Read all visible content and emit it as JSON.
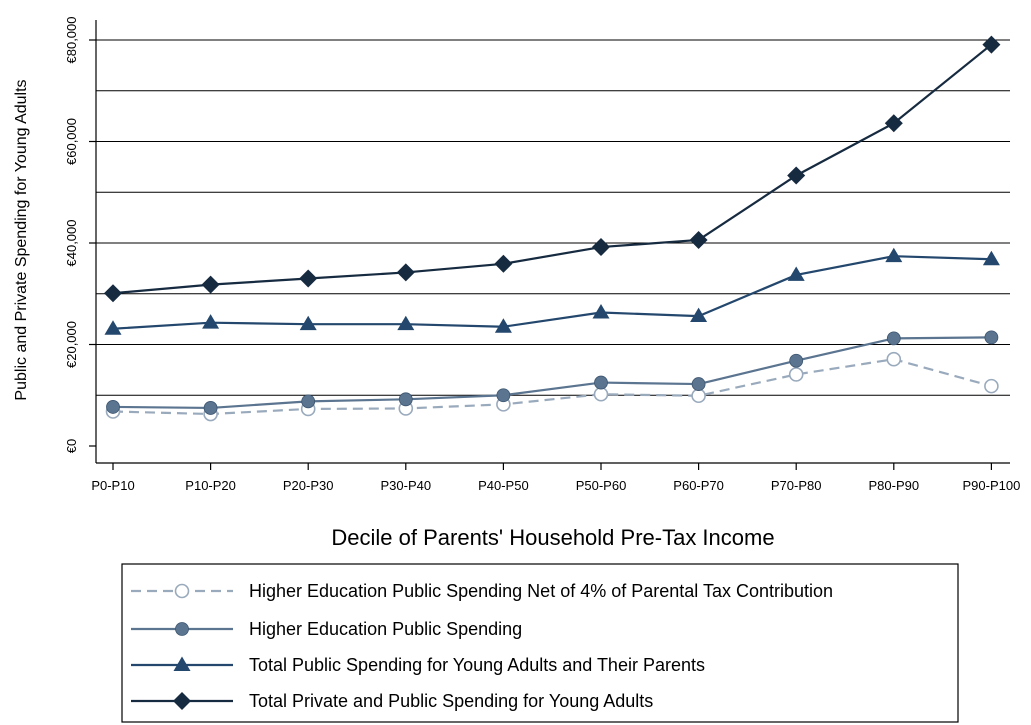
{
  "chart_data": {
    "type": "line",
    "title": "",
    "xlabel": "Decile of Parents' Household Pre-Tax Income",
    "ylabel": "Public and Private Spending for Young Adults",
    "categories": [
      "P0-P10",
      "P10-P20",
      "P20-P30",
      "P30-P40",
      "P40-P50",
      "P50-P60",
      "P60-P70",
      "P70-P80",
      "P80-P90",
      "P90-P100"
    ],
    "ylim": [
      0,
      80000
    ],
    "yticks": [
      {
        "value": 0,
        "label": "€0"
      },
      {
        "value": 20000,
        "label": "€20,000"
      },
      {
        "value": 40000,
        "label": "€40,000"
      },
      {
        "value": 60000,
        "label": "€60,000"
      },
      {
        "value": 80000,
        "label": "€80,000"
      }
    ],
    "grid_values": [
      10000,
      20000,
      30000,
      40000,
      50000,
      60000,
      70000,
      80000
    ],
    "legend_position": "bottom",
    "series": [
      {
        "name": "Higher Education Public Spending Net of 4% of Parental Tax Contribution",
        "values": [
          6800,
          6300,
          7300,
          7400,
          8200,
          10200,
          9900,
          14100,
          17100,
          11800
        ],
        "color": "#9aaabd",
        "marker": "circle-open",
        "dash": "dashed"
      },
      {
        "name": "Higher Education Public Spending",
        "values": [
          7700,
          7500,
          8800,
          9200,
          10000,
          12500,
          12200,
          16800,
          21200,
          21400
        ],
        "color": "#5b7490",
        "marker": "circle",
        "dash": "solid"
      },
      {
        "name": "Total Public Spending for Young Adults and Their Parents",
        "values": [
          23100,
          24300,
          24000,
          24000,
          23500,
          26300,
          25600,
          33700,
          37400,
          36800
        ],
        "color": "#23476d",
        "marker": "triangle",
        "dash": "solid"
      },
      {
        "name": "Total Private and Public Spending for Young Adults",
        "values": [
          30100,
          31800,
          33000,
          34200,
          35900,
          39200,
          40600,
          53300,
          63600,
          79100
        ],
        "color": "#162a40",
        "marker": "diamond",
        "dash": "solid"
      }
    ]
  }
}
